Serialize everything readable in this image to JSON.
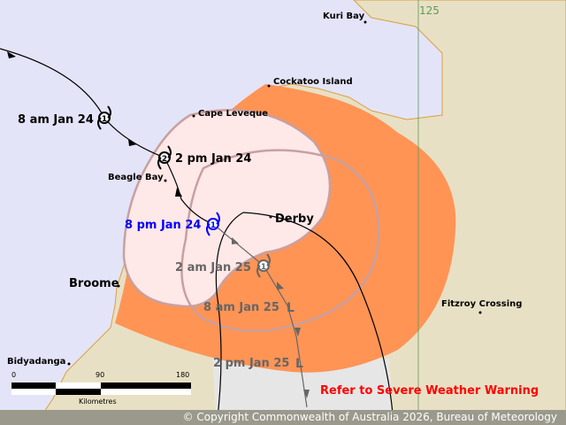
{
  "colors": {
    "sea": "#e4e4f8",
    "land": "#e8e0c4",
    "warning_zone": "#ff9455",
    "watch_zone": "#ffe8e8",
    "watch_outline": "#c8a0a0",
    "track": "#000000",
    "forecast_track": "#666666",
    "current_position": "#0000ff",
    "warning_text": "#ff0000"
  },
  "grid": {
    "longitude_label": "125"
  },
  "places": [
    {
      "name": "Kuri Bay"
    },
    {
      "name": "Cockatoo Island"
    },
    {
      "name": "Cape Leveque"
    },
    {
      "name": "Beagle Bay"
    },
    {
      "name": "Derby"
    },
    {
      "name": "Broome"
    },
    {
      "name": "Fitzroy Crossing"
    },
    {
      "name": "Bidyadanga"
    }
  ],
  "track_points": [
    {
      "time": "8 am Jan 24",
      "category": "1",
      "type": "past"
    },
    {
      "time": "2 pm Jan 24",
      "category": "2",
      "type": "past"
    },
    {
      "time": "8 pm Jan 24",
      "category": "1",
      "type": "current"
    },
    {
      "time": "2 am Jan 25",
      "category": "1",
      "type": "forecast"
    },
    {
      "time": "8 am Jan 25",
      "category": "L",
      "type": "forecast-low"
    },
    {
      "time": "2 pm Jan 25",
      "category": "L",
      "type": "forecast-low"
    }
  ],
  "scale": {
    "ticks": [
      "0",
      "90",
      "180"
    ],
    "unit": "Kilometres"
  },
  "warning_text": "Refer to Severe Weather Warning",
  "copyright": "© Copyright Commonwealth of Australia 2026, Bureau of Meteorology"
}
